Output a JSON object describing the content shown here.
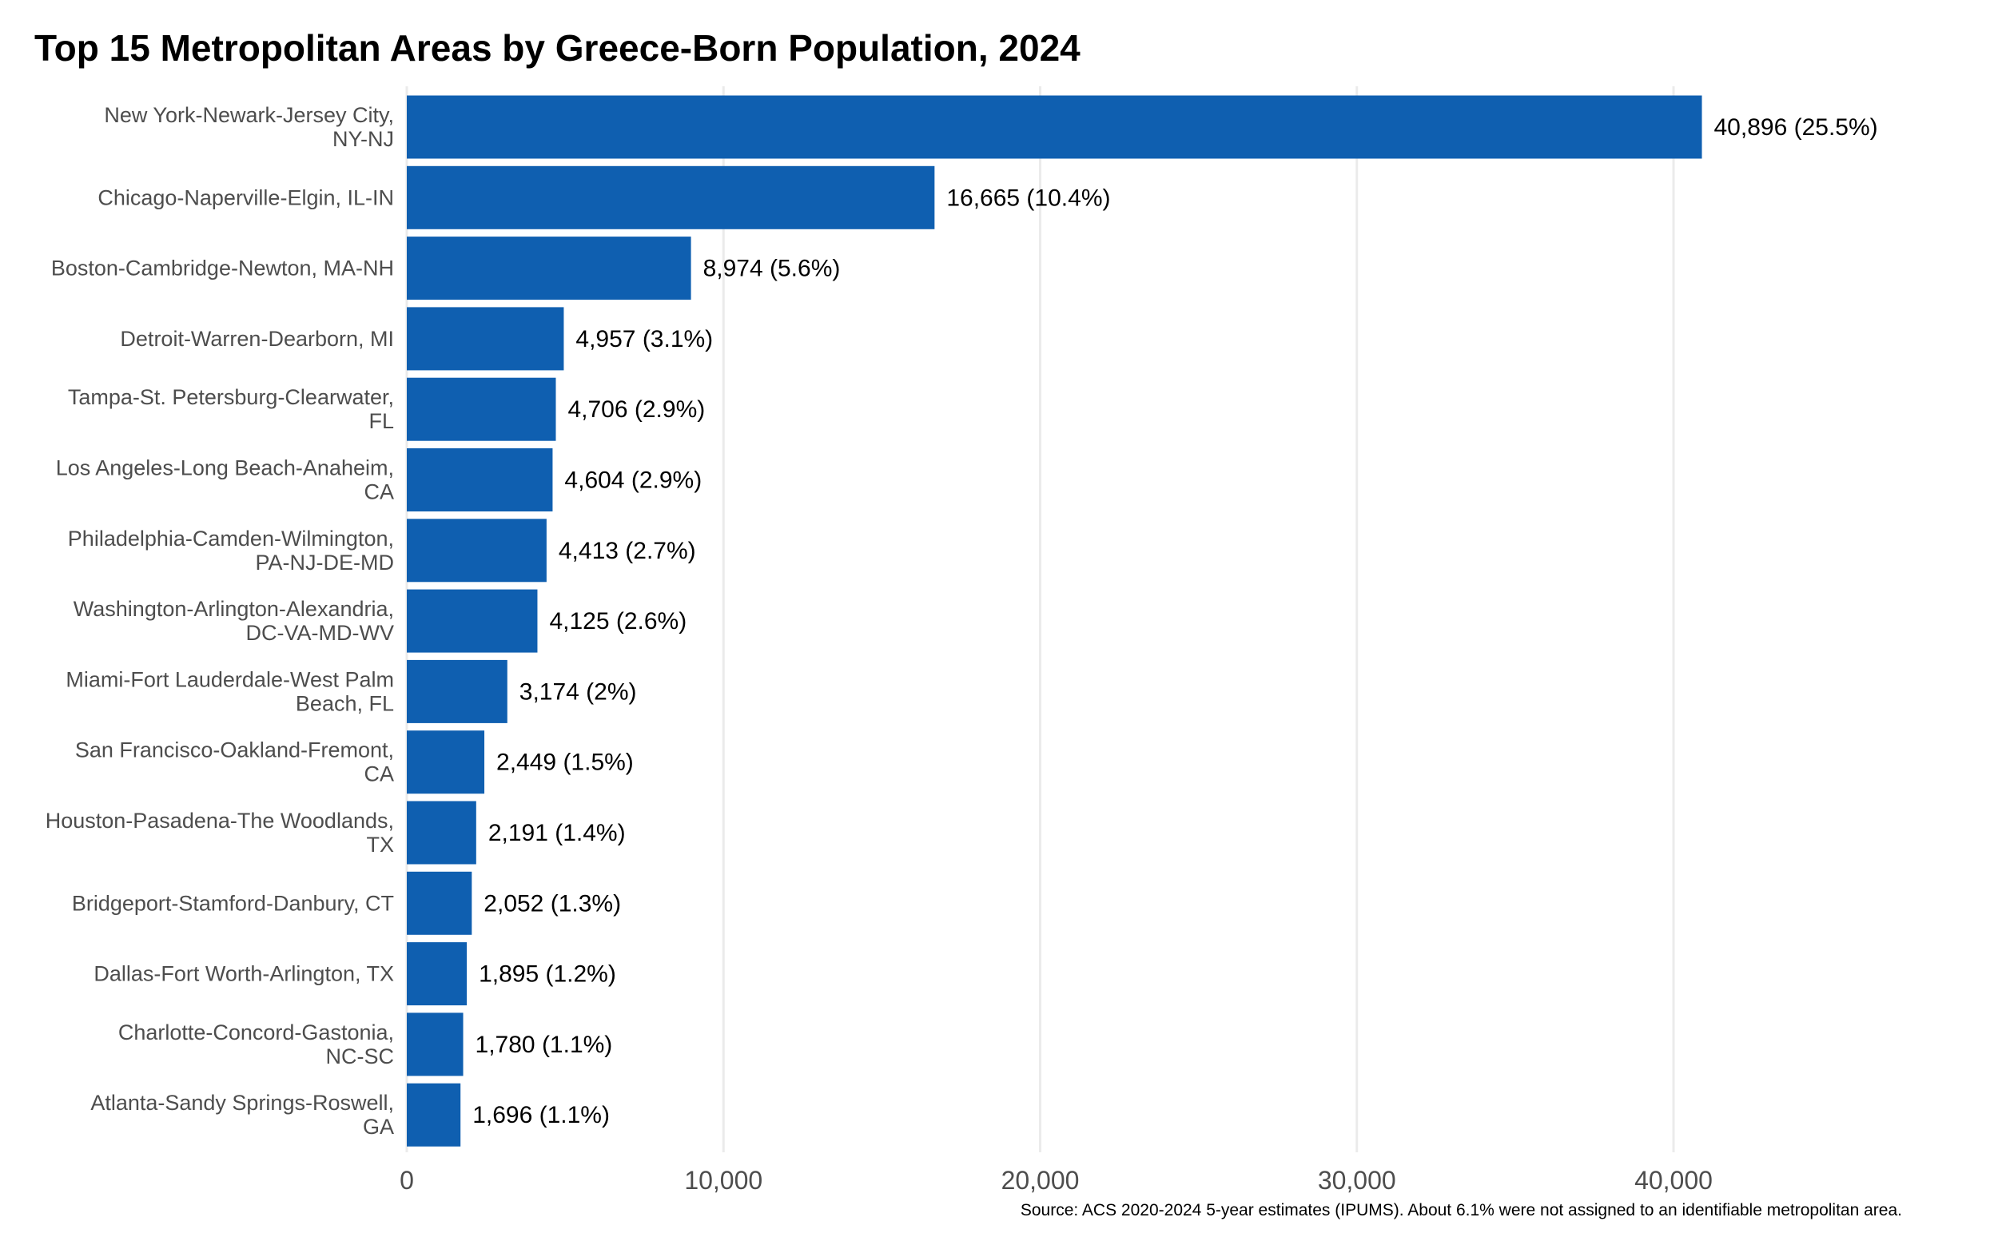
{
  "chart_data": {
    "type": "bar",
    "orientation": "horizontal",
    "title": "Top 15 Metropolitan Areas by Greece-Born Population, 2024",
    "xlabel": "",
    "ylabel": "",
    "caption": "Source: ACS 2020-2024 5-year estimates (IPUMS). About 6.1% were not assigned to an identifiable metropolitan area.",
    "bar_color": "#0f5fb0",
    "grid": true,
    "legend": "none",
    "xlim": [
      0,
      47000
    ],
    "x_ticks": [
      0,
      10000,
      20000,
      30000,
      40000
    ],
    "x_tick_labels": [
      "0",
      "10,000",
      "20,000",
      "30,000",
      "40,000"
    ],
    "categories": [
      [
        "New York-Newark-Jersey City,",
        "NY-NJ"
      ],
      [
        "Chicago-Naperville-Elgin, IL-IN"
      ],
      [
        "Boston-Cambridge-Newton, MA-NH"
      ],
      [
        "Detroit-Warren-Dearborn, MI"
      ],
      [
        "Tampa-St. Petersburg-Clearwater,",
        "FL"
      ],
      [
        "Los Angeles-Long Beach-Anaheim,",
        "CA"
      ],
      [
        "Philadelphia-Camden-Wilmington,",
        "PA-NJ-DE-MD"
      ],
      [
        "Washington-Arlington-Alexandria,",
        "DC-VA-MD-WV"
      ],
      [
        "Miami-Fort Lauderdale-West Palm",
        "Beach, FL"
      ],
      [
        "San Francisco-Oakland-Fremont,",
        "CA"
      ],
      [
        "Houston-Pasadena-The Woodlands,",
        "TX"
      ],
      [
        "Bridgeport-Stamford-Danbury, CT"
      ],
      [
        "Dallas-Fort Worth-Arlington, TX"
      ],
      [
        "Charlotte-Concord-Gastonia,",
        "NC-SC"
      ],
      [
        "Atlanta-Sandy Springs-Roswell,",
        "GA"
      ]
    ],
    "values": [
      40896,
      16665,
      8974,
      4957,
      4706,
      4604,
      4413,
      4125,
      3174,
      2449,
      2191,
      2052,
      1895,
      1780,
      1696
    ],
    "data_labels": [
      "40,896 (25.5%)",
      "16,665 (10.4%)",
      "8,974 (5.6%)",
      "4,957 (3.1%)",
      "4,706 (2.9%)",
      "4,604 (2.9%)",
      "4,413 (2.7%)",
      "4,125 (2.6%)",
      "3,174 (2%)",
      "2,449 (1.5%)",
      "2,191 (1.4%)",
      "2,052 (1.3%)",
      "1,895 (1.2%)",
      "1,780 (1.1%)",
      "1,696 (1.1%)"
    ]
  }
}
